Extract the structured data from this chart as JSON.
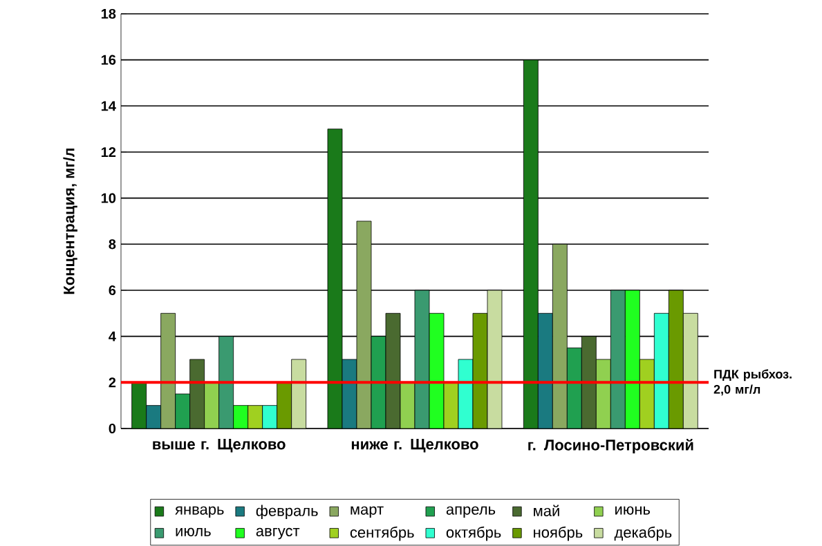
{
  "chart_data": {
    "type": "bar",
    "ylabel": "Концентрация, мг/л",
    "categories": [
      "выше г. Щелково",
      "ниже г. Щелково",
      "г. Лосино-Петровский"
    ],
    "series": [
      {
        "name": "январь",
        "color": "#1a7a1a",
        "values": [
          2,
          13,
          16
        ]
      },
      {
        "name": "февраль",
        "color": "#1a7a80",
        "values": [
          1,
          3,
          5
        ]
      },
      {
        "name": "март",
        "color": "#8aa860",
        "values": [
          5,
          9,
          8
        ]
      },
      {
        "name": "апрель",
        "color": "#20a050",
        "values": [
          1.5,
          4,
          3.5
        ]
      },
      {
        "name": "май",
        "color": "#4a6a30",
        "values": [
          3,
          5,
          4
        ]
      },
      {
        "name": "июнь",
        "color": "#90d050",
        "values": [
          2,
          2,
          3
        ]
      },
      {
        "name": "июль",
        "color": "#3a9a70",
        "values": [
          4,
          6,
          6
        ]
      },
      {
        "name": "август",
        "color": "#20ff20",
        "values": [
          1,
          5,
          6
        ]
      },
      {
        "name": "сентябрь",
        "color": "#a0d020",
        "values": [
          1,
          2,
          3
        ]
      },
      {
        "name": "октябрь",
        "color": "#30ffd0",
        "values": [
          1,
          3,
          5
        ]
      },
      {
        "name": "ноябрь",
        "color": "#6a9a00",
        "values": [
          2,
          5,
          6
        ]
      },
      {
        "name": "декабрь",
        "color": "#c8dca0",
        "values": [
          3,
          6,
          5
        ]
      }
    ],
    "ylim": [
      0,
      18
    ],
    "yticks": [
      0,
      2,
      4,
      6,
      8,
      10,
      12,
      14,
      16,
      18
    ],
    "ref_lines": [
      {
        "axis": "y",
        "value": 2,
        "label": "ПДК рыбхоз. 2,0 мг/л",
        "color": "#ff0000"
      }
    ],
    "grid": "y",
    "legend": "bottom"
  }
}
